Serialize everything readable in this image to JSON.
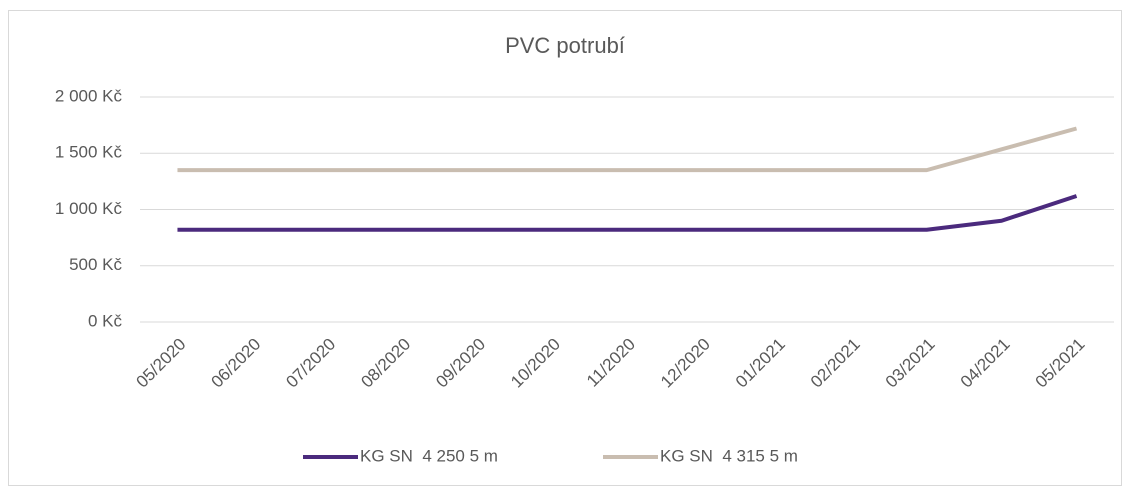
{
  "chart_data": {
    "type": "line",
    "title": "PVC potrubí",
    "categories": [
      "05/2020",
      "06/2020",
      "07/2020",
      "08/2020",
      "09/2020",
      "10/2020",
      "11/2020",
      "12/2020",
      "01/2021",
      "02/2021",
      "03/2021",
      "04/2021",
      "05/2021"
    ],
    "series": [
      {
        "name": "KG SN  4 250 5 m",
        "color": "#4b2a7d",
        "values": [
          820,
          820,
          820,
          820,
          820,
          820,
          820,
          820,
          820,
          820,
          820,
          900,
          1120
        ]
      },
      {
        "name": "KG SN  4 315 5 m",
        "color": "#c9bdb0",
        "values": [
          1350,
          1350,
          1350,
          1350,
          1350,
          1350,
          1350,
          1350,
          1350,
          1350,
          1350,
          1535,
          1720
        ]
      }
    ],
    "ylim": [
      0,
      2000
    ],
    "yticks": [
      {
        "value": 0,
        "label": "0 Kč"
      },
      {
        "value": 500,
        "label": "500 Kč"
      },
      {
        "value": 1000,
        "label": "1 000 Kč"
      },
      {
        "value": 1500,
        "label": "1 500 Kč"
      },
      {
        "value": 2000,
        "label": "2 000 Kč"
      }
    ],
    "grid": true,
    "legend": "bottom"
  }
}
